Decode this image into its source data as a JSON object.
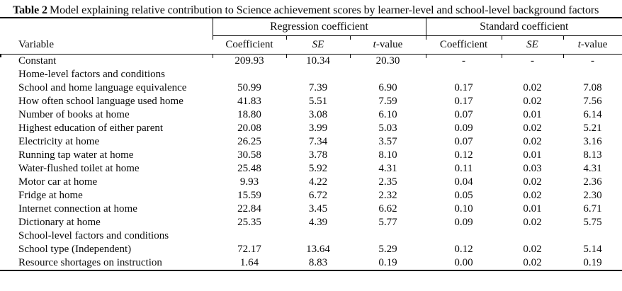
{
  "page": {
    "background": "#ffffff",
    "ink": "#0a0a0a"
  },
  "title": {
    "bold": "Table 2",
    "rest": "Model explaining relative contribution to Science achievement scores by learner-level and school-level background factors"
  },
  "table": {
    "group_headers": {
      "regression": "Regression coefficient",
      "standard": "Standard coefficient"
    },
    "column_headers": {
      "variable": "Variable",
      "reg_coefficient": "Coefficient",
      "reg_se": "SE",
      "reg_t_prefix": "t",
      "reg_t_suffix": "-value",
      "std_coefficient": "Coefficient",
      "std_se": "SE",
      "std_t_prefix": "t",
      "std_t_suffix": "-value"
    },
    "rows": [
      {
        "label": "Constant",
        "section": false,
        "values": [
          "209.93",
          "10.34",
          "20.30",
          "-",
          "-",
          "-"
        ]
      },
      {
        "label": "Home-level factors and conditions",
        "section": true,
        "values": [
          "",
          "",
          "",
          "",
          "",
          ""
        ]
      },
      {
        "label": "School and home language equivalence",
        "section": false,
        "values": [
          "50.99",
          "7.39",
          "6.90",
          "0.17",
          "0.02",
          "7.08"
        ]
      },
      {
        "label": "How often school language used home",
        "section": false,
        "values": [
          "41.83",
          "5.51",
          "7.59",
          "0.17",
          "0.02",
          "7.56"
        ]
      },
      {
        "label": "Number of books at home",
        "section": false,
        "values": [
          "18.80",
          "3.08",
          "6.10",
          "0.07",
          "0.01",
          "6.14"
        ]
      },
      {
        "label": "Highest education of either parent",
        "section": false,
        "values": [
          "20.08",
          "3.99",
          "5.03",
          "0.09",
          "0.02",
          "5.21"
        ]
      },
      {
        "label": "Electricity at home",
        "section": false,
        "values": [
          "26.25",
          "7.34",
          "3.57",
          "0.07",
          "0.02",
          "3.16"
        ]
      },
      {
        "label": "Running tap water at home",
        "section": false,
        "values": [
          "30.58",
          "3.78",
          "8.10",
          "0.12",
          "0.01",
          "8.13"
        ]
      },
      {
        "label": "Water-flushed toilet at home",
        "section": false,
        "values": [
          "25.48",
          "5.92",
          "4.31",
          "0.11",
          "0.03",
          "4.31"
        ]
      },
      {
        "label": "Motor car at home",
        "section": false,
        "values": [
          "9.93",
          "4.22",
          "2.35",
          "0.04",
          "0.02",
          "2.36"
        ]
      },
      {
        "label": "Fridge at home",
        "section": false,
        "values": [
          "15.59",
          "6.72",
          "2.32",
          "0.05",
          "0.02",
          "2.30"
        ]
      },
      {
        "label": "Internet connection at home",
        "section": false,
        "values": [
          "22.84",
          "3.45",
          "6.62",
          "0.10",
          "0.01",
          "6.71"
        ]
      },
      {
        "label": "Dictionary at home",
        "section": false,
        "values": [
          "25.35",
          "4.39",
          "5.77",
          "0.09",
          "0.02",
          "5.75"
        ]
      },
      {
        "label": "School-level factors and conditions",
        "section": true,
        "values": [
          "",
          "",
          "",
          "",
          "",
          ""
        ]
      },
      {
        "label": "School type (Independent)",
        "section": false,
        "values": [
          "72.17",
          "13.64",
          "5.29",
          "0.12",
          "0.02",
          "5.14"
        ]
      },
      {
        "label": "Resource shortages on instruction",
        "section": false,
        "values": [
          "1.64",
          "8.83",
          "0.19",
          "0.00",
          "0.02",
          "0.19"
        ]
      }
    ]
  }
}
